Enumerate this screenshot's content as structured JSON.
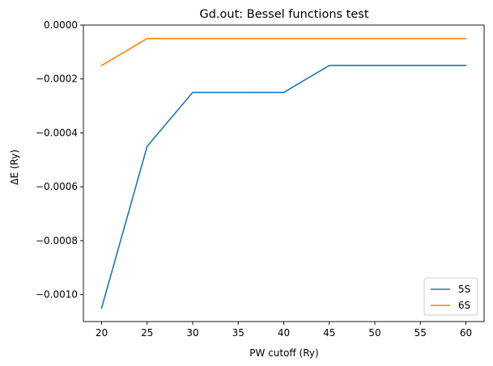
{
  "chart_data": {
    "type": "line",
    "title": "Gd.out: Bessel functions test",
    "xlabel": "PW cutoff (Ry)",
    "ylabel": "ΔE (Ry)",
    "x": [
      20,
      25,
      30,
      35,
      40,
      45,
      50,
      55,
      60
    ],
    "xlim": [
      18,
      62
    ],
    "ylim": [
      -0.0011,
      0.0
    ],
    "xticks": [
      20,
      25,
      30,
      35,
      40,
      45,
      50,
      55,
      60
    ],
    "xtick_labels": [
      "20",
      "25",
      "30",
      "35",
      "40",
      "45",
      "50",
      "55",
      "60"
    ],
    "yticks": [
      -0.001,
      -0.0008,
      -0.0006,
      -0.0004,
      -0.0002,
      0.0
    ],
    "ytick_labels": [
      "−0.0010",
      "−0.0008",
      "−0.0006",
      "−0.0004",
      "−0.0002",
      "0.0000"
    ],
    "grid": false,
    "legend_position": "lower-right",
    "series": [
      {
        "name": "5S",
        "color": "#1f77b4",
        "values": [
          -0.00105,
          -0.00045,
          -0.00025,
          -0.00025,
          -0.00025,
          -0.00015,
          -0.00015,
          -0.00015,
          -0.00015
        ]
      },
      {
        "name": "6S",
        "color": "#ff7f0e",
        "values": [
          -0.00015,
          -5e-05,
          -5e-05,
          -5e-05,
          -5e-05,
          -5e-05,
          -5e-05,
          -5e-05,
          -5e-05
        ]
      }
    ]
  }
}
